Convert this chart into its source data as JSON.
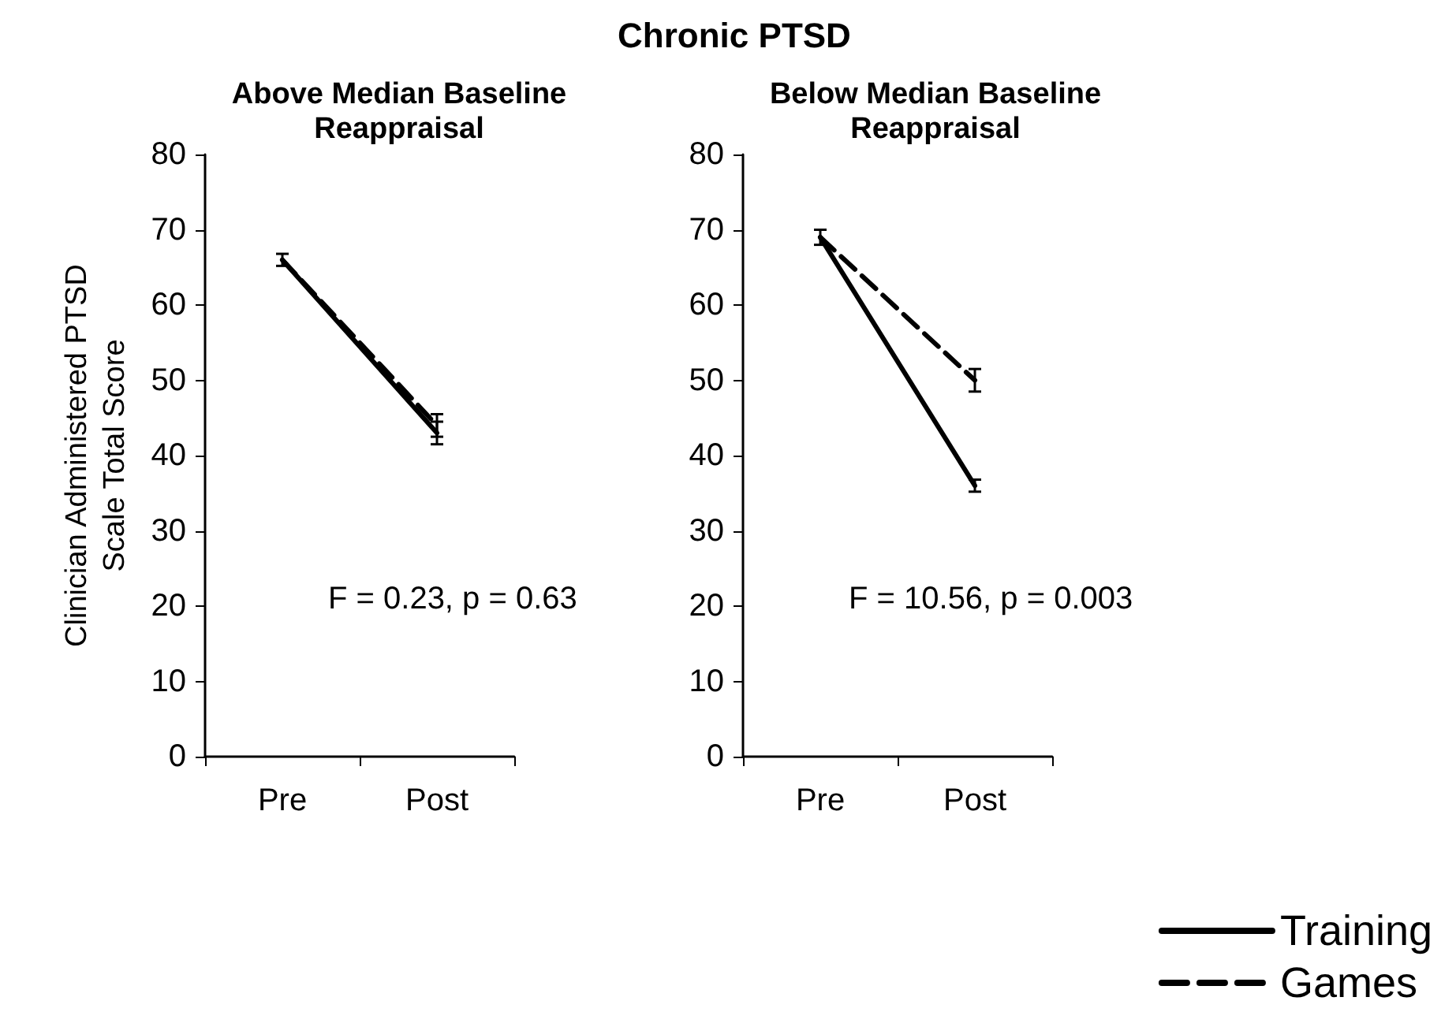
{
  "chart_data": [
    {
      "type": "line",
      "title": "Above Median Baseline\nReappraisal",
      "ylabel": "Clinician Administered PTSD\nScale Total Score",
      "categories": [
        "Pre",
        "Post"
      ],
      "ylim": [
        0,
        80
      ],
      "yticks": [
        0,
        10,
        20,
        30,
        40,
        50,
        60,
        70,
        80
      ],
      "grid": false,
      "legend": false,
      "marker": "none",
      "annotations": [
        "Chronic PTSD",
        "F = 0.23, p = 0.63"
      ],
      "series": [
        {
          "color": "#000000",
          "line_style": "solid",
          "values": [
            66,
            43
          ],
          "errors": [
            0.8,
            1.5
          ]
        },
        {
          "color": "#000000",
          "line_style": "dashed",
          "values": [
            66,
            44
          ],
          "errors": [
            null,
            1.5
          ]
        }
      ]
    },
    {
      "type": "line",
      "title": "Below Median Baseline\nReappraisal",
      "categories": [
        "Pre",
        "Post"
      ],
      "ylim": [
        0,
        80
      ],
      "yticks": [
        0,
        10,
        20,
        30,
        40,
        50,
        60,
        70,
        80
      ],
      "grid": false,
      "legend": "bottom right",
      "marker": "none",
      "annotations": [
        "F = 10.56, p = 0.003"
      ],
      "series": [
        {
          "name": "Training",
          "color": "#000000",
          "line_style": "solid",
          "values": [
            69,
            36
          ],
          "errors": [
            1,
            0.8
          ]
        },
        {
          "name": "Games",
          "color": "#000000",
          "line_style": "dashed",
          "values": [
            69,
            50
          ],
          "errors": [
            null,
            1.5
          ]
        }
      ]
    }
  ]
}
